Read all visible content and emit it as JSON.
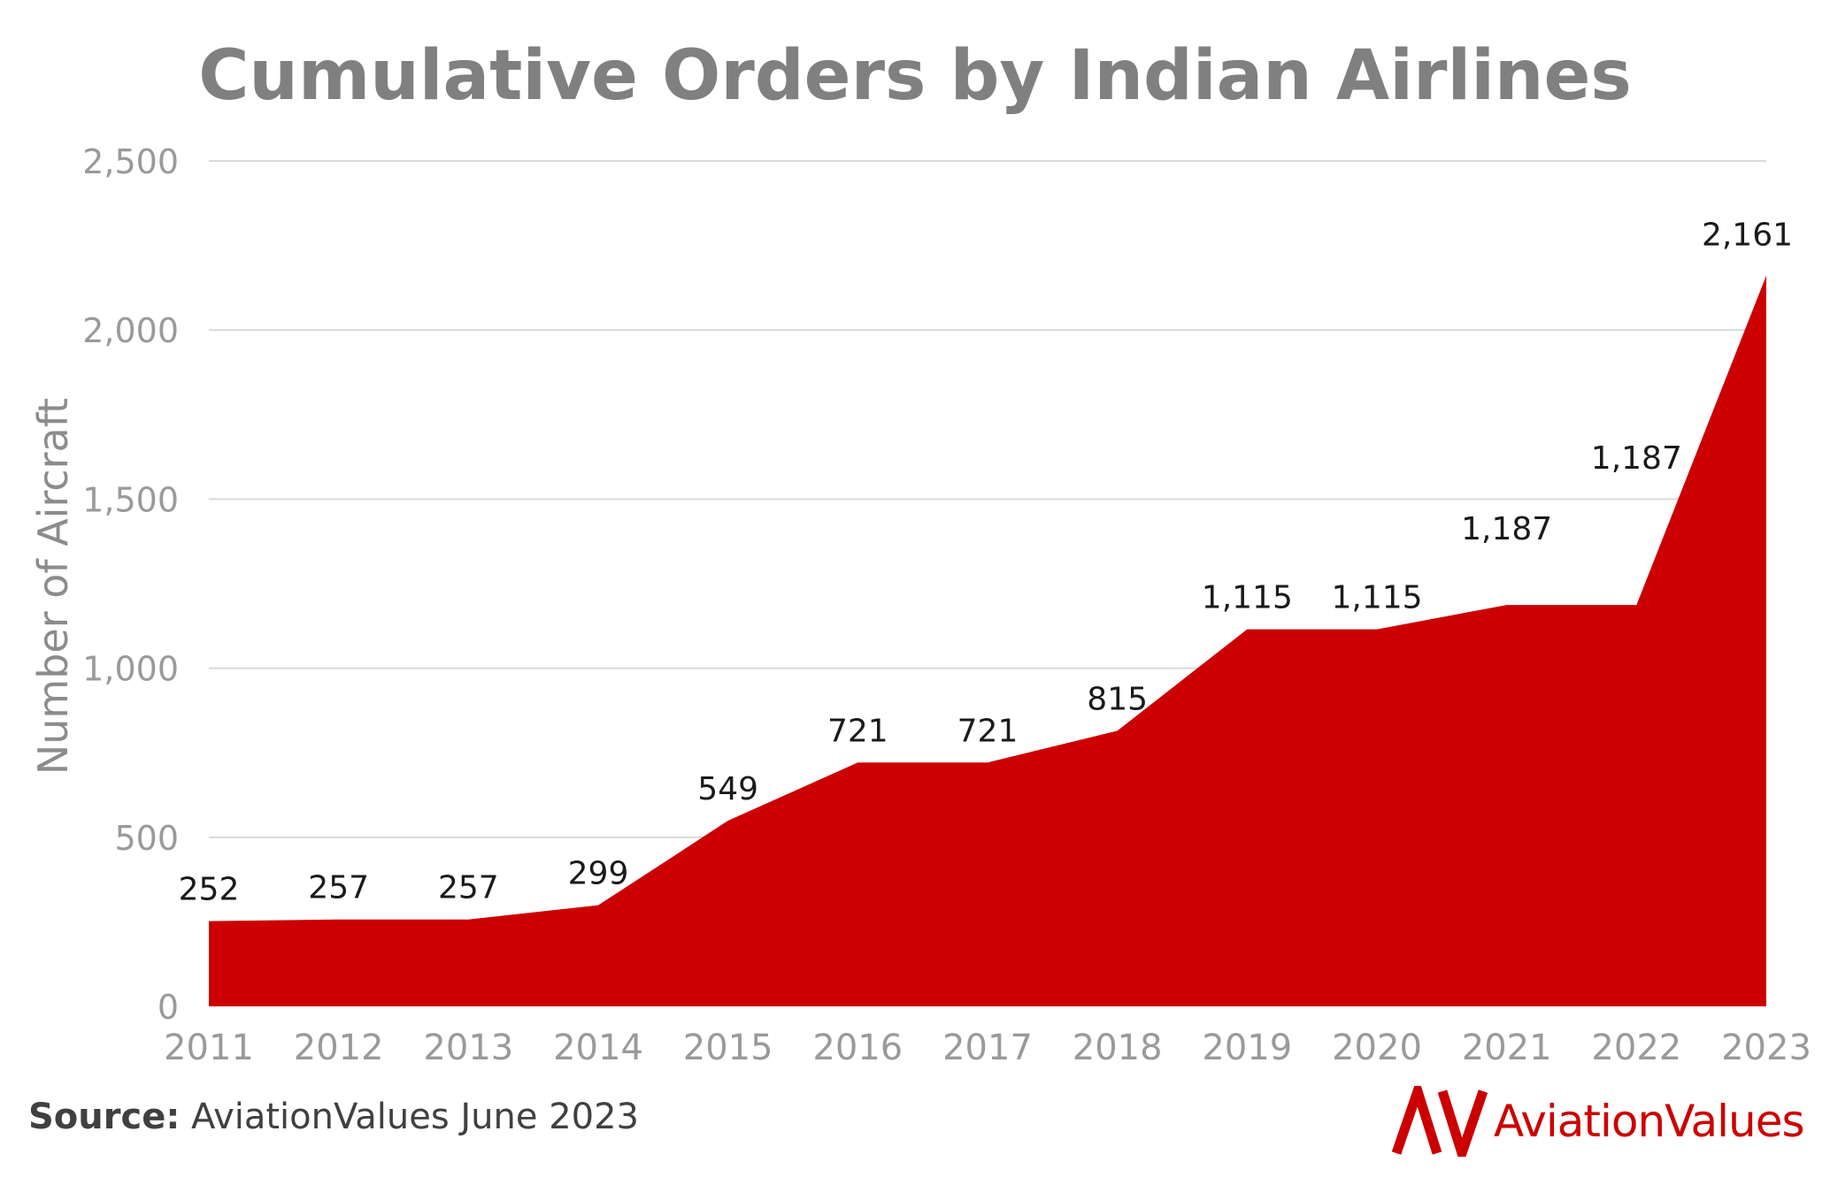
{
  "chart_data": {
    "type": "area",
    "title": "Cumulative Orders by Indian Airlines",
    "ylabel": "Number of Aircraft",
    "xlabel": "",
    "categories": [
      "2011",
      "2012",
      "2013",
      "2014",
      "2015",
      "2016",
      "2017",
      "2018",
      "2019",
      "2020",
      "2021",
      "2022",
      "2023"
    ],
    "values": [
      252,
      257,
      257,
      299,
      549,
      721,
      721,
      815,
      1115,
      1115,
      1187,
      1187,
      2161
    ],
    "data_labels": [
      "252",
      "257",
      "257",
      "299",
      "549",
      "721",
      "721",
      "815",
      "1,115",
      "1,115",
      "1,187",
      "1,187",
      "2,161"
    ],
    "ylim": [
      0,
      2500
    ],
    "yticks": [
      0,
      500,
      1000,
      1500,
      2000,
      2500
    ],
    "ytick_labels": [
      "0",
      "500",
      "1,000",
      "1,500",
      "2,000",
      "2,500"
    ],
    "grid": true,
    "fill_color": "#cc0000"
  },
  "source": {
    "label": "Source:",
    "text": "AviationValues June 2023"
  },
  "logo": {
    "text": "AviationValues",
    "color": "#cc0000"
  }
}
